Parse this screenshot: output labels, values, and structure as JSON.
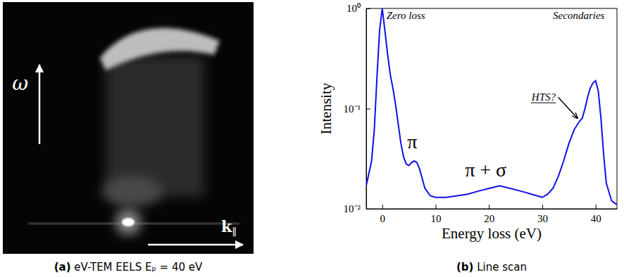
{
  "chart_data": [
    {
      "type": "image",
      "title": "(a) eV-TEM EELS Eₚ = 40 eV",
      "xlabel": "k∥",
      "ylabel": "ω"
    },
    {
      "type": "line",
      "title": "(b) Line scan",
      "xlabel": "Energy loss (eV)",
      "ylabel": "Intensity",
      "log": "y",
      "color": "#1010e8",
      "x": [
        -3,
        -2,
        -1.5,
        -1,
        -0.5,
        0,
        0.5,
        1,
        1.5,
        2,
        2.5,
        3,
        3.5,
        4,
        4.5,
        5,
        5.5,
        6,
        6.5,
        7,
        7.5,
        8,
        9,
        10,
        12,
        14,
        16,
        18,
        20,
        22,
        24,
        26,
        28,
        30,
        31,
        32,
        33,
        34,
        35,
        36,
        37,
        37.5,
        38,
        38.5,
        39,
        39.5,
        40,
        40.5,
        41,
        41.5,
        42,
        43,
        44
      ],
      "values": [
        0.017,
        0.03,
        0.06,
        0.2,
        0.6,
        1.0,
        0.6,
        0.35,
        0.22,
        0.16,
        0.11,
        0.07,
        0.045,
        0.033,
        0.028,
        0.027,
        0.029,
        0.03,
        0.029,
        0.025,
        0.02,
        0.016,
        0.0135,
        0.013,
        0.013,
        0.0135,
        0.014,
        0.015,
        0.016,
        0.017,
        0.016,
        0.015,
        0.014,
        0.013,
        0.014,
        0.016,
        0.021,
        0.03,
        0.045,
        0.062,
        0.075,
        0.08,
        0.1,
        0.13,
        0.16,
        0.18,
        0.19,
        0.15,
        0.08,
        0.035,
        0.018,
        0.012,
        0.011
      ],
      "xlim": [
        -3,
        44
      ],
      "ylim": [
        0.01,
        1
      ],
      "xticks": [
        0,
        10,
        20,
        30,
        40
      ],
      "yticks": [
        {
          "value": 0.01,
          "label": "10⁻²"
        },
        {
          "value": 0.1,
          "label": "10⁻¹"
        },
        {
          "value": 1,
          "label": "10⁰"
        }
      ],
      "annotations": [
        {
          "text": "Zero loss",
          "x": 0.8,
          "y": 0.78
        },
        {
          "text": "π",
          "x": 4.7,
          "y": 0.04
        },
        {
          "text": "π + σ",
          "x": 15.5,
          "y": 0.021
        },
        {
          "text": "Secondaries",
          "x": 32,
          "y": 0.78
        },
        {
          "text": "HTS?",
          "x": 28,
          "y": 0.12,
          "xy": [
            36.6,
            0.08
          ]
        }
      ]
    }
  ]
}
